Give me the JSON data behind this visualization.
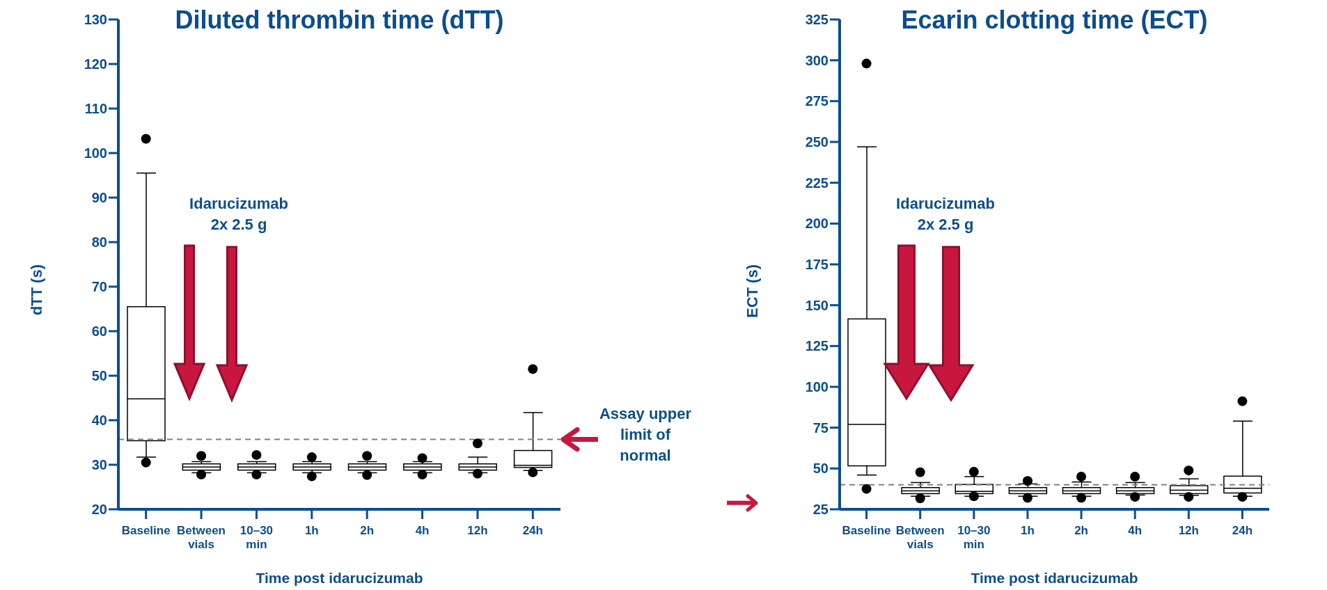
{
  "chart_data": [
    {
      "type": "box",
      "title": "Diluted thrombin time (dTT)",
      "xlabel": "Time post idarucizumab",
      "ylabel": "dTT (s)",
      "categories": [
        "Baseline",
        "Between\nvials",
        "10–30\nmin",
        "1h",
        "2h",
        "4h",
        "12h",
        "24h"
      ],
      "boxes": [
        {
          "low": 31.7,
          "q1": 35.4,
          "median": 44.8,
          "q3": 65.5,
          "high": 95.5,
          "outliers": [
            103.2,
            30.5
          ]
        },
        {
          "low": 28.2,
          "q1": 28.8,
          "median": 29.5,
          "q3": 30.2,
          "high": 30.7,
          "outliers": [
            32,
            27.8
          ]
        },
        {
          "low": 28.2,
          "q1": 28.8,
          "median": 29.5,
          "q3": 30.2,
          "high": 30.7,
          "outliers": [
            32.2,
            27.8
          ]
        },
        {
          "low": 28.2,
          "q1": 28.8,
          "median": 29.5,
          "q3": 30.2,
          "high": 30.7,
          "outliers": [
            31.7,
            27.4
          ]
        },
        {
          "low": 28.2,
          "q1": 28.8,
          "median": 29.5,
          "q3": 30.2,
          "high": 30.7,
          "outliers": [
            32,
            27.7
          ]
        },
        {
          "low": 28.2,
          "q1": 28.8,
          "median": 29.5,
          "q3": 30.2,
          "high": 30.7,
          "outliers": [
            31.5,
            27.8
          ]
        },
        {
          "low": 28.2,
          "q1": 28.8,
          "median": 29.5,
          "q3": 30.2,
          "high": 31.7,
          "outliers": [
            34.8,
            28
          ]
        },
        {
          "low": 28.7,
          "q1": 29.4,
          "median": 29.9,
          "q3": 33.2,
          "high": 41.7,
          "outliers": [
            51.5,
            28.3
          ]
        }
      ],
      "ylim": [
        20,
        130
      ],
      "yticks": [
        20,
        30,
        40,
        50,
        60,
        70,
        80,
        90,
        100,
        110,
        120,
        130
      ],
      "ref_lines": [
        {
          "axis": "y",
          "value": 35.7,
          "label": "Assay upper limit of normal",
          "color": "#808080",
          "line_style": "dashed"
        }
      ],
      "annotations": [
        "Idarucizumab\n2x 2.5 g"
      ]
    },
    {
      "type": "box",
      "title": "Ecarin clotting time (ECT)",
      "xlabel": "Time post idarucizumab",
      "ylabel": "ECT (s)",
      "categories": [
        "Baseline",
        "Between\nvials",
        "10–30\nmin",
        "1h",
        "2h",
        "4h",
        "12h",
        "24h"
      ],
      "boxes": [
        {
          "low": 46,
          "q1": 51.6,
          "median": 77,
          "q3": 141.6,
          "high": 247,
          "outliers": [
            298,
            37.5
          ]
        },
        {
          "low": 33,
          "q1": 34.6,
          "median": 36.3,
          "q3": 38.3,
          "high": 41.4,
          "outliers": [
            47.7,
            31.7
          ]
        },
        {
          "low": 33,
          "q1": 34.6,
          "median": 36,
          "q3": 40.2,
          "high": 45,
          "outliers": [
            48,
            33
          ]
        },
        {
          "low": 33,
          "q1": 34.6,
          "median": 36.3,
          "q3": 38.3,
          "high": 40.6,
          "outliers": [
            42.4,
            32
          ]
        },
        {
          "low": 33,
          "q1": 34.6,
          "median": 36.3,
          "q3": 38.3,
          "high": 41.7,
          "outliers": [
            45,
            32
          ]
        },
        {
          "low": 33.7,
          "q1": 34.6,
          "median": 36.3,
          "q3": 38.3,
          "high": 41.4,
          "outliers": [
            45,
            32.6
          ]
        },
        {
          "low": 33.5,
          "q1": 34.6,
          "median": 36.7,
          "q3": 39.5,
          "high": 43.6,
          "outliers": [
            48.8,
            32.6
          ]
        },
        {
          "low": 33,
          "q1": 35,
          "median": 37.9,
          "q3": 45.3,
          "high": 79,
          "outliers": [
            91.2,
            32.6
          ]
        }
      ],
      "ylim": [
        25,
        325
      ],
      "yticks": [
        25,
        50,
        75,
        100,
        125,
        150,
        175,
        200,
        225,
        250,
        275,
        300,
        325
      ],
      "ref_lines": [
        {
          "axis": "y",
          "value": 40,
          "color": "#808080",
          "line_style": "dashed"
        }
      ],
      "annotations": [
        "Idarucizumab\n2x 2.5 g"
      ]
    }
  ]
}
